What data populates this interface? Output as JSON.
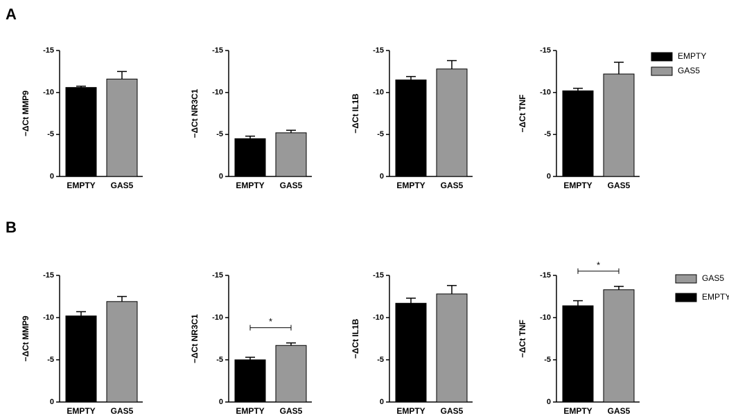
{
  "panel_labels": [
    "A",
    "B"
  ],
  "legends": [
    [
      {
        "name": "EMPTY",
        "color": "#000000"
      },
      {
        "name": "GAS5",
        "color": "#999999"
      }
    ],
    [
      {
        "name": "GAS5",
        "color": "#999999"
      },
      {
        "name": "EMPTY",
        "color": "#000000"
      }
    ]
  ],
  "chart_data": [
    {
      "type": "bar",
      "ylabel": "−ΔCt MMP9",
      "categories": [
        "EMPTY",
        "GAS5"
      ],
      "values": [
        -10.6,
        -11.6
      ],
      "errors": [
        0.15,
        0.9
      ],
      "colors": [
        "#000000",
        "#999999"
      ],
      "ylim": [
        0,
        -15
      ],
      "yticks": [
        0,
        -5,
        -10,
        -15
      ]
    },
    {
      "type": "bar",
      "ylabel": "−ΔCt NR3C1",
      "categories": [
        "EMPTY",
        "GAS5"
      ],
      "values": [
        -4.5,
        -5.2
      ],
      "errors": [
        0.3,
        0.3
      ],
      "colors": [
        "#000000",
        "#999999"
      ],
      "ylim": [
        0,
        -15
      ],
      "yticks": [
        0,
        -5,
        -10,
        -15
      ]
    },
    {
      "type": "bar",
      "ylabel": "−ΔCt IL1B",
      "categories": [
        "EMPTY",
        "GAS5"
      ],
      "values": [
        -11.5,
        -12.8
      ],
      "errors": [
        0.4,
        1.0
      ],
      "colors": [
        "#000000",
        "#999999"
      ],
      "ylim": [
        0,
        -15
      ],
      "yticks": [
        0,
        -5,
        -10,
        -15
      ]
    },
    {
      "type": "bar",
      "ylabel": "−ΔCt TNF",
      "categories": [
        "EMPTY",
        "GAS5"
      ],
      "values": [
        -10.2,
        -12.2
      ],
      "errors": [
        0.3,
        1.4
      ],
      "colors": [
        "#000000",
        "#999999"
      ],
      "ylim": [
        0,
        -15
      ],
      "yticks": [
        0,
        -5,
        -10,
        -15
      ]
    },
    {
      "type": "bar",
      "ylabel": "−ΔCt MMP9",
      "categories": [
        "EMPTY",
        "GAS5"
      ],
      "values": [
        -10.2,
        -11.9
      ],
      "errors": [
        0.5,
        0.6
      ],
      "colors": [
        "#000000",
        "#999999"
      ],
      "ylim": [
        0,
        -15
      ],
      "yticks": [
        0,
        -5,
        -10,
        -15
      ]
    },
    {
      "type": "bar",
      "ylabel": "−ΔCt NR3C1",
      "categories": [
        "EMPTY",
        "GAS5"
      ],
      "values": [
        -5.0,
        -6.7
      ],
      "errors": [
        0.3,
        0.3
      ],
      "colors": [
        "#000000",
        "#999999"
      ],
      "ylim": [
        0,
        -15
      ],
      "yticks": [
        0,
        -5,
        -10,
        -15
      ],
      "significance": "*"
    },
    {
      "type": "bar",
      "ylabel": "−ΔCt IL1B",
      "categories": [
        "EMPTY",
        "GAS5"
      ],
      "values": [
        -11.7,
        -12.8
      ],
      "errors": [
        0.6,
        1.0
      ],
      "colors": [
        "#000000",
        "#999999"
      ],
      "ylim": [
        0,
        -15
      ],
      "yticks": [
        0,
        -5,
        -10,
        -15
      ]
    },
    {
      "type": "bar",
      "ylabel": "−ΔCt TNF",
      "categories": [
        "EMPTY",
        "GAS5"
      ],
      "values": [
        -11.4,
        -13.3
      ],
      "errors": [
        0.6,
        0.4
      ],
      "colors": [
        "#000000",
        "#999999"
      ],
      "ylim": [
        0,
        -15
      ],
      "yticks": [
        0,
        -5,
        -10,
        -15
      ],
      "significance": "*"
    }
  ]
}
